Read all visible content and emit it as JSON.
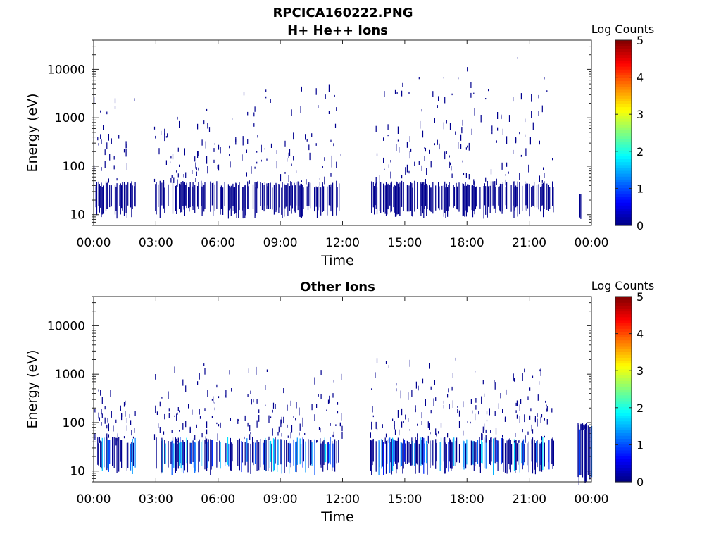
{
  "figure": {
    "title": "RPCICA160222.PNG"
  },
  "chart_data": [
    {
      "type": "heatmap",
      "title": "H+ He++ Ions",
      "xlabel": "Time",
      "ylabel": "Energy (eV)",
      "y_scale": "log",
      "xlim": [
        "00:00",
        "24:00"
      ],
      "ylim": [
        6,
        40000
      ],
      "x_ticks": [
        "00:00",
        "03:00",
        "06:00",
        "09:00",
        "12:00",
        "15:00",
        "18:00",
        "21:00",
        "00:00"
      ],
      "y_ticks": [
        "10",
        "100",
        "1000",
        "10000"
      ],
      "colorbar": {
        "label": "Log Counts",
        "range": [
          0,
          5
        ],
        "ticks": [
          "0",
          "1",
          "2",
          "3",
          "4",
          "5"
        ],
        "colormap": "jet"
      },
      "grid": false,
      "activity": [
        {
          "start": "00:00",
          "end": "02:00",
          "low_band": [
            15,
            40
          ],
          "scatter_max": 7000
        },
        {
          "start": "02:55",
          "end": "06:10",
          "low_band": [
            15,
            40
          ],
          "scatter_max": 2000
        },
        {
          "start": "06:10",
          "end": "12:00",
          "low_band": [
            15,
            40
          ],
          "scatter_max": 13000
        },
        {
          "start": "13:20",
          "end": "17:20",
          "low_band": [
            15,
            40
          ],
          "scatter_max": 22000
        },
        {
          "start": "17:20",
          "end": "22:10",
          "low_band": [
            15,
            40
          ],
          "scatter_max": 22000
        },
        {
          "start": "23:20",
          "end": "23:30",
          "low_band": [
            12,
            25
          ],
          "scatter_max": 25
        }
      ]
    },
    {
      "type": "heatmap",
      "title": "Other Ions",
      "xlabel": "Time",
      "ylabel": "Energy (eV)",
      "y_scale": "log",
      "xlim": [
        "00:00",
        "24:00"
      ],
      "ylim": [
        6,
        40000
      ],
      "x_ticks": [
        "00:00",
        "03:00",
        "06:00",
        "09:00",
        "12:00",
        "15:00",
        "18:00",
        "21:00",
        "00:00"
      ],
      "y_ticks": [
        "10",
        "100",
        "1000",
        "10000"
      ],
      "colorbar": {
        "label": "Log Counts",
        "range": [
          0,
          5
        ],
        "ticks": [
          "0",
          "1",
          "2",
          "3",
          "4",
          "5"
        ],
        "colormap": "jet"
      },
      "grid": false,
      "activity": [
        {
          "start": "00:00",
          "end": "02:00",
          "low_band": [
            15,
            40
          ],
          "scatter_max": 600
        },
        {
          "start": "02:55",
          "end": "12:00",
          "low_band": [
            15,
            40
          ],
          "scatter_max": 2500
        },
        {
          "start": "13:20",
          "end": "22:10",
          "low_band": [
            15,
            40
          ],
          "scatter_max": 4500
        },
        {
          "start": "23:20",
          "end": "24:00",
          "low_band": [
            9,
            80
          ],
          "scatter_max": 80
        }
      ]
    }
  ]
}
